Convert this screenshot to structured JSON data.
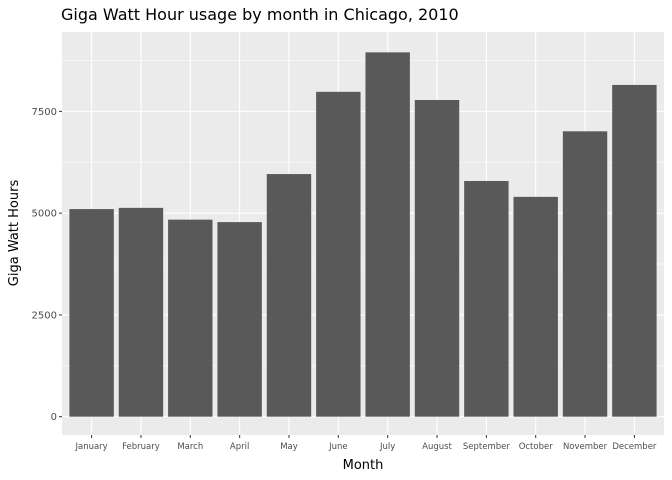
{
  "chart_data": {
    "type": "bar",
    "title": "Giga Watt Hour usage by month in Chicago, 2010",
    "xlabel": "Month",
    "ylabel": "Giga Watt Hours",
    "categories": [
      "January",
      "February",
      "March",
      "April",
      "May",
      "June",
      "July",
      "August",
      "September",
      "October",
      "November",
      "December"
    ],
    "values": [
      5100,
      5130,
      4840,
      4780,
      5960,
      7980,
      8950,
      7780,
      5790,
      5400,
      7010,
      8150
    ],
    "ylim": [
      -450,
      9450
    ],
    "yticks": [
      0,
      2500,
      5000,
      7500
    ],
    "ytick_labels": [
      "0",
      "2500",
      "5000",
      "7500"
    ],
    "grid": true,
    "colors": {
      "panel": "#ebebeb",
      "grid_major": "#ffffff",
      "bar": "#595959",
      "tick": "#333333"
    }
  }
}
